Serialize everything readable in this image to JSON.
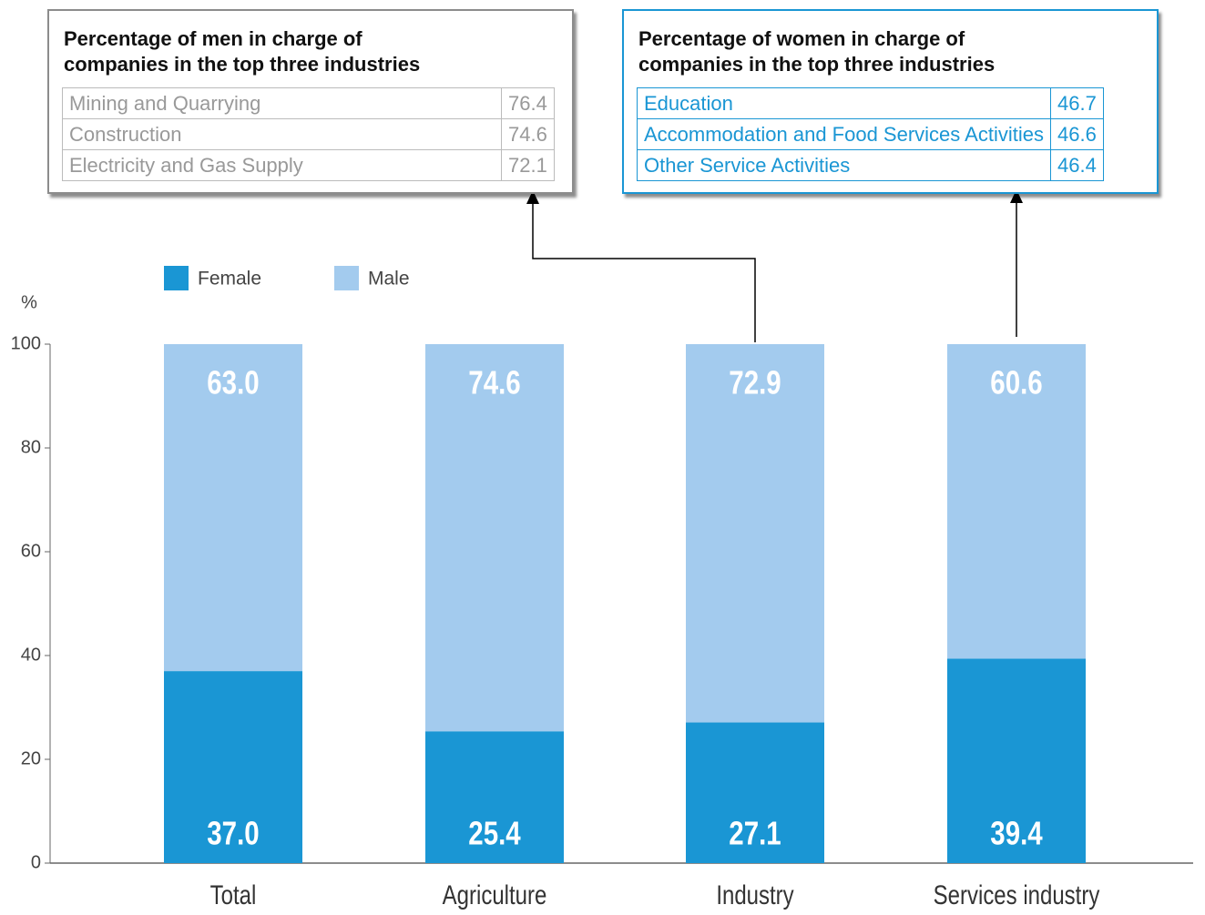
{
  "chart_data": {
    "type": "stacked_bar",
    "y_axis_label": "%",
    "categories": [
      "Total",
      "Agriculture",
      "Industry",
      "Services industry"
    ],
    "series": [
      {
        "name": "Female",
        "color": "#1a96d4",
        "values": [
          37.0,
          25.4,
          27.1,
          39.4
        ],
        "value_labels": [
          "37.0",
          "25.4",
          "27.1",
          "39.4"
        ]
      },
      {
        "name": "Male",
        "color": "#a3cbee",
        "values": [
          63.0,
          74.6,
          72.9,
          60.6
        ],
        "value_labels": [
          "63.0",
          "74.6",
          "72.9",
          "60.6"
        ]
      }
    ],
    "ylim": [
      0,
      100
    ],
    "yticks": [
      0,
      20,
      40,
      60,
      80,
      100
    ],
    "legend": "top-left",
    "tables": [
      {
        "title": [
          "Percentage of men in charge of",
          "companies in the top three industries"
        ],
        "color": "#999999",
        "border": "#8c8c8c",
        "rows": [
          [
            "Mining and Quarrying",
            76.4
          ],
          [
            "Construction",
            74.6
          ],
          [
            "Electricity and Gas Supply",
            72.1
          ]
        ]
      },
      {
        "title": [
          "Percentage of women in charge of",
          "companies in the top three industries"
        ],
        "color": "#1a96d4",
        "border": "#1a96d4",
        "rows": [
          [
            "Education",
            46.7
          ],
          [
            "Accommodation and Food Services Activities",
            46.6
          ],
          [
            "Other Service Activities",
            46.4
          ]
        ]
      }
    ]
  }
}
